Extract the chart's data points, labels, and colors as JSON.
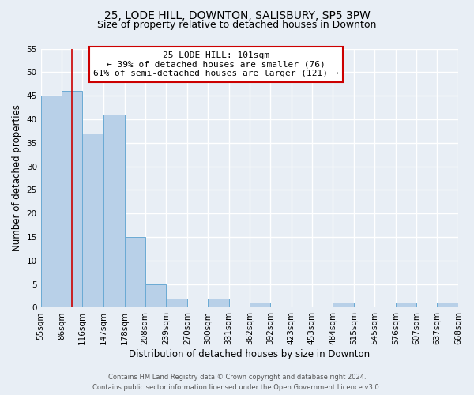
{
  "title": "25, LODE HILL, DOWNTON, SALISBURY, SP5 3PW",
  "subtitle": "Size of property relative to detached houses in Downton",
  "xlabel": "Distribution of detached houses by size in Downton",
  "ylabel": "Number of detached properties",
  "bin_edges": [
    55,
    86,
    116,
    147,
    178,
    208,
    239,
    270,
    300,
    331,
    362,
    392,
    423,
    453,
    484,
    515,
    545,
    576,
    607,
    637,
    668
  ],
  "bin_labels": [
    "55sqm",
    "86sqm",
    "116sqm",
    "147sqm",
    "178sqm",
    "208sqm",
    "239sqm",
    "270sqm",
    "300sqm",
    "331sqm",
    "362sqm",
    "392sqm",
    "423sqm",
    "453sqm",
    "484sqm",
    "515sqm",
    "545sqm",
    "576sqm",
    "607sqm",
    "637sqm",
    "668sqm"
  ],
  "counts": [
    45,
    46,
    37,
    41,
    15,
    5,
    2,
    0,
    2,
    0,
    1,
    0,
    0,
    0,
    1,
    0,
    0,
    1,
    0,
    1
  ],
  "bar_color": "#b8d0e8",
  "bar_edge_color": "#6aaad4",
  "vline_x": 101,
  "vline_color": "#cc0000",
  "annotation_line1": "25 LODE HILL: 101sqm",
  "annotation_line2": "← 39% of detached houses are smaller (76)",
  "annotation_line3": "61% of semi-detached houses are larger (121) →",
  "annotation_box_color": "#cc0000",
  "ylim": [
    0,
    55
  ],
  "yticks": [
    0,
    5,
    10,
    15,
    20,
    25,
    30,
    35,
    40,
    45,
    50,
    55
  ],
  "footer1": "Contains HM Land Registry data © Crown copyright and database right 2024.",
  "footer2": "Contains public sector information licensed under the Open Government Licence v3.0.",
  "background_color": "#e8eef5",
  "grid_color": "#ffffff",
  "title_fontsize": 10,
  "subtitle_fontsize": 9,
  "axis_label_fontsize": 8.5,
  "tick_fontsize": 7.5,
  "annotation_fontsize": 8,
  "footer_fontsize": 6
}
